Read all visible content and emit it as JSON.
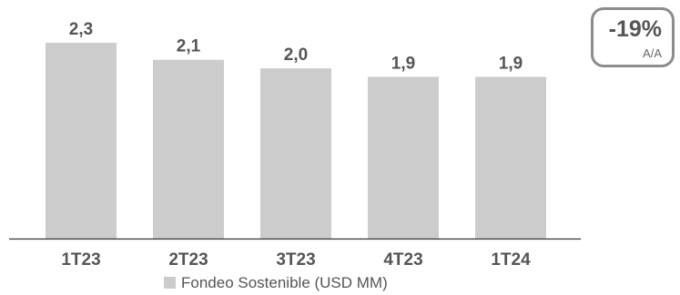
{
  "chart_data": {
    "type": "bar",
    "categories": [
      "1T23",
      "2T23",
      "3T23",
      "4T23",
      "1T24"
    ],
    "series": [
      {
        "name": "Fondeo Sostenible (USD MM)",
        "values": [
          2.3,
          2.1,
          2.0,
          1.9,
          1.9
        ],
        "value_labels": [
          "2,3",
          "2,1",
          "2,0",
          "1,9",
          "1,9"
        ],
        "color": "#cccccc"
      }
    ],
    "ylim": [
      0,
      2.3
    ],
    "grid": false,
    "legend_position": "bottom-center",
    "axis_color": "#333333",
    "text_color": "#555555"
  },
  "badge": {
    "value": "-19%",
    "label": "A/A",
    "border_color": "#8c8c8c"
  }
}
